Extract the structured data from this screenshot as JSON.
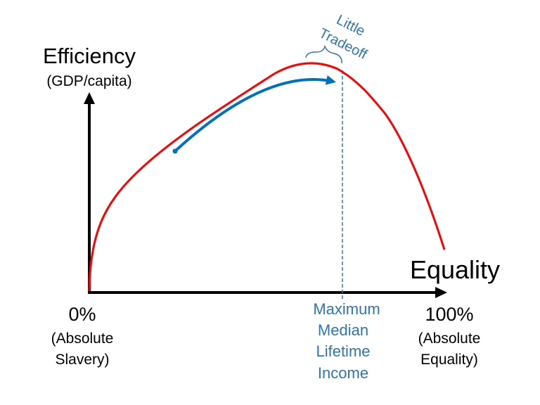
{
  "y_axis": {
    "title": "Efficiency",
    "subtitle": "(GDP/capita)"
  },
  "x_axis": {
    "title": "Equality",
    "left_label": {
      "percent": "0%",
      "lines": [
        "(Absolute",
        "Slavery)"
      ]
    },
    "right_label": {
      "percent": "100%",
      "lines": [
        "(Absolute",
        "Equality)"
      ]
    }
  },
  "annotations": {
    "maximum": [
      "Maximum",
      "Median",
      "Lifetime",
      "Income"
    ],
    "tradeoff": [
      "Little",
      "Tradeoff"
    ]
  }
}
